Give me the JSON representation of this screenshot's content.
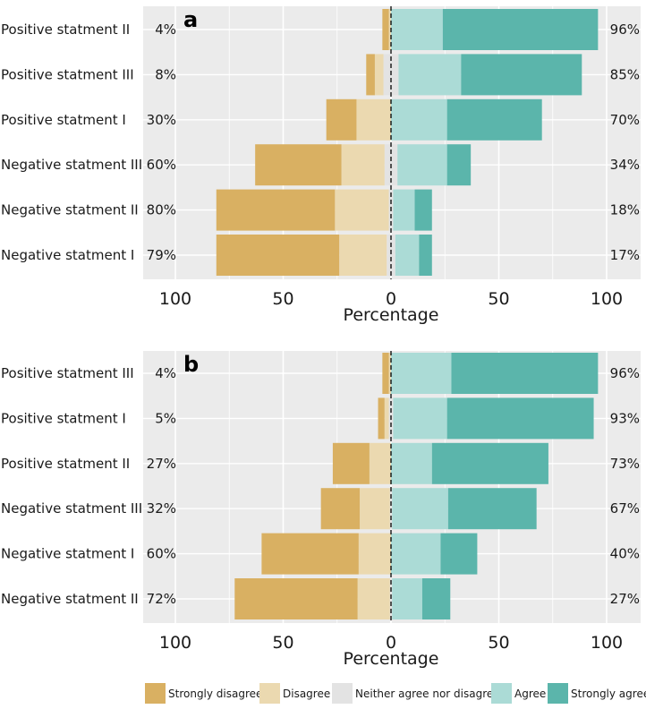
{
  "colors": {
    "strongly_disagree": "#d9b062",
    "disagree": "#ebd9b0",
    "neither": "#e3e3e3",
    "agree": "#abdbd6",
    "strongly_agree": "#5bb5ab",
    "panel_bg": "#ebebeb",
    "grid": "#ffffff"
  },
  "chart_data": [
    {
      "type": "bar",
      "subtype": "diverging-likert",
      "panel_label": "a",
      "xlabel": "Percentage",
      "xlim": [
        -100,
        100
      ],
      "ticks": [
        -100,
        -50,
        0,
        50,
        100
      ],
      "tick_labels": [
        "100",
        "50",
        "0",
        "50",
        "100"
      ],
      "items": [
        {
          "label": "Positive statment II",
          "left_pct": "4%",
          "right_pct": "96%",
          "strongly_disagree": 3,
          "disagree": 1,
          "neither": 0,
          "agree": 24,
          "strongly_agree": 72
        },
        {
          "label": "Positive statment III",
          "left_pct": "8%",
          "right_pct": "85%",
          "strongly_disagree": 4,
          "disagree": 4,
          "neither": 7,
          "agree": 29,
          "strongly_agree": 56
        },
        {
          "label": "Positive statment I",
          "left_pct": "30%",
          "right_pct": "70%",
          "strongly_disagree": 14,
          "disagree": 16,
          "neither": 0,
          "agree": 26,
          "strongly_agree": 44
        },
        {
          "label": "Negative statment III",
          "left_pct": "60%",
          "right_pct": "34%",
          "strongly_disagree": 40,
          "disagree": 20,
          "neither": 6,
          "agree": 23,
          "strongly_agree": 11
        },
        {
          "label": "Negative statment II",
          "left_pct": "80%",
          "right_pct": "18%",
          "strongly_disagree": 55,
          "disagree": 25,
          "neither": 2,
          "agree": 10,
          "strongly_agree": 8
        },
        {
          "label": "Negative statment I",
          "left_pct": "79%",
          "right_pct": "17%",
          "strongly_disagree": 57,
          "disagree": 22,
          "neither": 4,
          "agree": 11,
          "strongly_agree": 6
        }
      ]
    },
    {
      "type": "bar",
      "subtype": "diverging-likert",
      "panel_label": "b",
      "xlabel": "Percentage",
      "xlim": [
        -100,
        100
      ],
      "ticks": [
        -100,
        -50,
        0,
        50,
        100
      ],
      "tick_labels": [
        "100",
        "50",
        "0",
        "50",
        "100"
      ],
      "items": [
        {
          "label": "Positive statment III",
          "left_pct": "4%",
          "right_pct": "96%",
          "strongly_disagree": 3,
          "disagree": 1,
          "neither": 0,
          "agree": 28,
          "strongly_agree": 68
        },
        {
          "label": "Positive statment I",
          "left_pct": "5%",
          "right_pct": "93%",
          "strongly_disagree": 3,
          "disagree": 2,
          "neither": 2,
          "agree": 25,
          "strongly_agree": 68
        },
        {
          "label": "Positive statment II",
          "left_pct": "27%",
          "right_pct": "73%",
          "strongly_disagree": 17,
          "disagree": 10,
          "neither": 0,
          "agree": 19,
          "strongly_agree": 54
        },
        {
          "label": "Negative statment III",
          "left_pct": "32%",
          "right_pct": "67%",
          "strongly_disagree": 18,
          "disagree": 14,
          "neither": 1,
          "agree": 26,
          "strongly_agree": 41
        },
        {
          "label": "Negative statment I",
          "left_pct": "60%",
          "right_pct": "40%",
          "strongly_disagree": 45,
          "disagree": 15,
          "neither": 0,
          "agree": 23,
          "strongly_agree": 17
        },
        {
          "label": "Negative statment II",
          "left_pct": "72%",
          "right_pct": "27%",
          "strongly_disagree": 57,
          "disagree": 15,
          "neither": 1,
          "agree": 14,
          "strongly_agree": 13
        }
      ]
    }
  ],
  "legend": [
    {
      "key": "strongly_disagree",
      "label": "Strongly disagree"
    },
    {
      "key": "disagree",
      "label": "Disagree"
    },
    {
      "key": "neither",
      "label": "Neither agree nor disagree"
    },
    {
      "key": "agree",
      "label": "Agree"
    },
    {
      "key": "strongly_agree",
      "label": "Strongly agree"
    }
  ]
}
